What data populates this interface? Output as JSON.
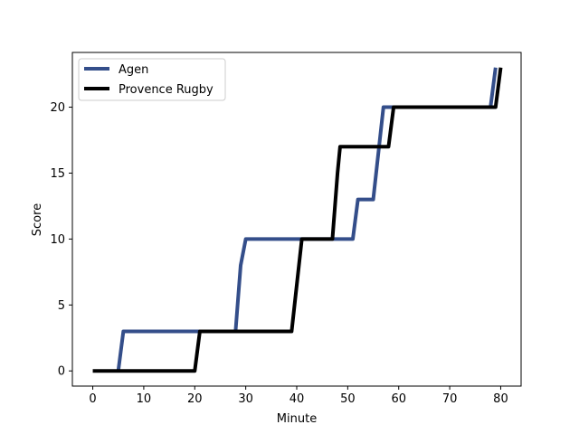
{
  "chart_data": {
    "type": "line",
    "title": "",
    "xlabel": "Minute",
    "ylabel": "Score",
    "xlim": [
      -4,
      84
    ],
    "ylim": [
      -1.15,
      24.15
    ],
    "xticks": [
      0,
      10,
      20,
      30,
      40,
      50,
      60,
      70,
      80
    ],
    "yticks": [
      0,
      5,
      10,
      15,
      20
    ],
    "grid": false,
    "legend_position": "top-left",
    "series": [
      {
        "name": "Agen",
        "color": "#344e8a",
        "points": [
          [
            5,
            0
          ],
          [
            6,
            3
          ],
          [
            28,
            3
          ],
          [
            29,
            8
          ],
          [
            30,
            10
          ],
          [
            48,
            10
          ],
          [
            51,
            10
          ],
          [
            52,
            13
          ],
          [
            55,
            13
          ],
          [
            57,
            20
          ],
          [
            78,
            20
          ],
          [
            79,
            23
          ]
        ]
      },
      {
        "name": "Provence Rugby",
        "color": "#000000",
        "points": [
          [
            0,
            0
          ],
          [
            20,
            0
          ],
          [
            21,
            3
          ],
          [
            39,
            3
          ],
          [
            41,
            10
          ],
          [
            47,
            10
          ],
          [
            48,
            15
          ],
          [
            48.5,
            17
          ],
          [
            58,
            17
          ],
          [
            59,
            20
          ],
          [
            79,
            20
          ],
          [
            80,
            23
          ]
        ]
      }
    ]
  }
}
